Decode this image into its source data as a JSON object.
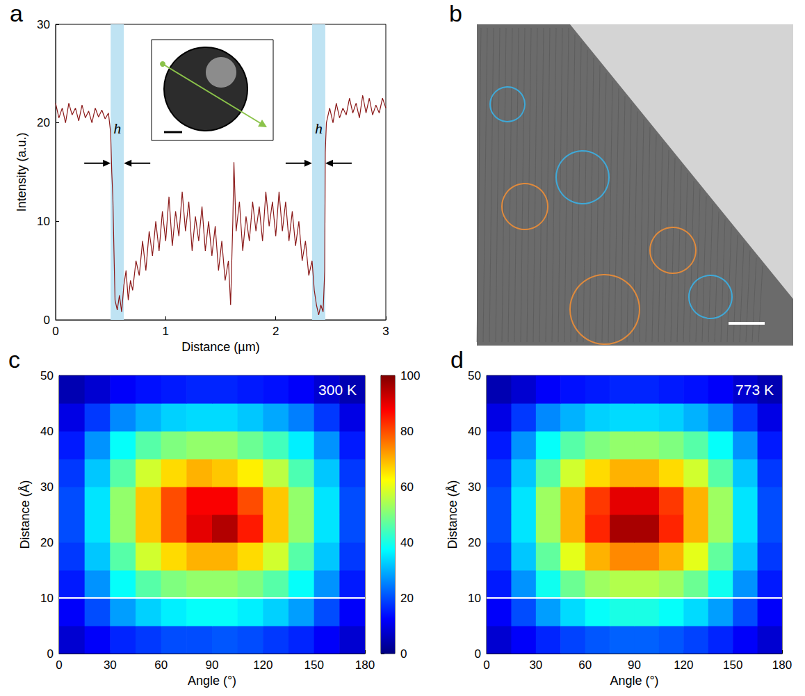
{
  "chart_data": [
    {
      "panel": "a",
      "type": "line",
      "color": "#8b1a1a",
      "xlabel": "Distance (µm)",
      "ylabel": "Intensity (a.u.)",
      "xlim": [
        0,
        3
      ],
      "xticks": [
        0,
        1,
        2,
        3
      ],
      "ylim": [
        0,
        30
      ],
      "yticks": [
        0,
        10,
        20,
        30
      ],
      "x": [
        0,
        0.03,
        0.06,
        0.09,
        0.12,
        0.15,
        0.18,
        0.21,
        0.24,
        0.27,
        0.3,
        0.33,
        0.36,
        0.39,
        0.42,
        0.45,
        0.48,
        0.5,
        0.51,
        0.52,
        0.53,
        0.54,
        0.56,
        0.58,
        0.6,
        0.62,
        0.64,
        0.66,
        0.68,
        0.7,
        0.73,
        0.76,
        0.79,
        0.82,
        0.85,
        0.88,
        0.91,
        0.94,
        0.97,
        1.0,
        1.03,
        1.06,
        1.09,
        1.12,
        1.15,
        1.18,
        1.21,
        1.24,
        1.27,
        1.3,
        1.33,
        1.36,
        1.39,
        1.42,
        1.45,
        1.48,
        1.51,
        1.54,
        1.57,
        1.59,
        1.61,
        1.62,
        1.64,
        1.67,
        1.7,
        1.73,
        1.76,
        1.79,
        1.82,
        1.85,
        1.88,
        1.91,
        1.94,
        1.97,
        2.0,
        2.03,
        2.06,
        2.09,
        2.12,
        2.15,
        2.18,
        2.21,
        2.24,
        2.27,
        2.3,
        2.33,
        2.35,
        2.37,
        2.39,
        2.41,
        2.43,
        2.445,
        2.45,
        2.46,
        2.49,
        2.52,
        2.55,
        2.58,
        2.61,
        2.64,
        2.67,
        2.7,
        2.73,
        2.76,
        2.79,
        2.82,
        2.85,
        2.88,
        2.91,
        2.94,
        2.97,
        3.0
      ],
      "values": [
        22,
        20.5,
        21.5,
        20,
        22,
        20.8,
        21.5,
        20.2,
        21.8,
        20.5,
        21.2,
        20,
        21.5,
        20.6,
        21.3,
        20.4,
        21,
        19,
        15,
        12.5,
        7,
        2,
        1,
        2.5,
        0.8,
        3.5,
        5,
        2,
        4,
        3,
        6,
        4.5,
        8,
        5,
        9,
        6.5,
        10,
        7,
        11,
        8,
        12.5,
        7.5,
        11,
        8.5,
        13,
        9,
        12,
        7,
        10.5,
        8,
        11.5,
        7,
        10,
        6.5,
        9.5,
        5,
        8,
        4,
        6,
        1.5,
        10,
        16,
        9,
        12,
        7,
        10.5,
        8,
        12,
        9,
        11.5,
        8,
        13,
        9.5,
        12,
        8.5,
        13,
        9,
        12,
        8,
        11,
        7.5,
        10,
        6,
        8,
        4.5,
        6,
        3,
        1.5,
        0.5,
        1.5,
        0.8,
        5,
        17,
        20,
        21.5,
        20,
        22,
        20.5,
        21.5,
        20.8,
        22.5,
        21,
        22,
        20.5,
        22.8,
        21,
        22.5,
        20.8,
        21.8,
        21,
        22.5,
        21.5
      ],
      "bands": [
        [
          0.5,
          0.62
        ],
        [
          2.33,
          2.45
        ]
      ],
      "band_label": "h"
    },
    {
      "panel": "b",
      "type": "image"
    },
    {
      "panel": "c",
      "type": "heatmap",
      "annotation": "300 K",
      "xlabel": "Angle (°)",
      "ylabel": "Distance (Å)",
      "xlim": [
        0,
        180
      ],
      "xticks": [
        0,
        30,
        60,
        90,
        120,
        150,
        180
      ],
      "ylim": [
        0,
        50
      ],
      "yticks": [
        0,
        10,
        20,
        30,
        40,
        50
      ],
      "x": [
        7.5,
        22.5,
        37.5,
        52.5,
        67.5,
        82.5,
        97.5,
        112.5,
        127.5,
        142.5,
        157.5,
        172.5
      ],
      "y": [
        2.5,
        7.5,
        12.5,
        17.5,
        22.5,
        27.5,
        32.5,
        37.5,
        42.5,
        47.5
      ],
      "cells": [
        [
          8,
          12,
          16,
          18,
          20,
          20,
          21,
          20,
          18,
          16,
          12,
          8
        ],
        [
          12,
          20,
          28,
          33,
          36,
          38,
          38,
          36,
          33,
          28,
          20,
          12
        ],
        [
          15,
          27,
          38,
          46,
          50,
          52,
          52,
          50,
          46,
          38,
          27,
          15
        ],
        [
          18,
          32,
          46,
          58,
          66,
          70,
          70,
          66,
          58,
          46,
          32,
          18
        ],
        [
          20,
          35,
          52,
          68,
          80,
          90,
          95,
          85,
          68,
          52,
          35,
          20
        ],
        [
          20,
          35,
          52,
          68,
          80,
          88,
          88,
          80,
          68,
          52,
          35,
          20
        ],
        [
          18,
          32,
          46,
          58,
          66,
          70,
          68,
          64,
          56,
          45,
          32,
          18
        ],
        [
          15,
          27,
          38,
          46,
          50,
          52,
          52,
          48,
          44,
          36,
          27,
          15
        ],
        [
          10,
          18,
          26,
          30,
          33,
          34,
          34,
          32,
          29,
          25,
          18,
          10
        ],
        [
          5,
          8,
          12,
          14,
          15,
          16,
          16,
          15,
          14,
          12,
          8,
          5
        ]
      ],
      "colorbar": {
        "range": [
          0,
          100
        ],
        "ticks": [
          0,
          20,
          40,
          60,
          80,
          100
        ]
      },
      "reference_line": 10
    },
    {
      "panel": "d",
      "type": "heatmap",
      "annotation": "773 K",
      "xlabel": "Angle (°)",
      "ylabel": "Distance (Å)",
      "xlim": [
        0,
        180
      ],
      "xticks": [
        0,
        30,
        60,
        90,
        120,
        150,
        180
      ],
      "ylim": [
        0,
        50
      ],
      "yticks": [
        0,
        10,
        20,
        30,
        40,
        50
      ],
      "x": [
        7.5,
        22.5,
        37.5,
        52.5,
        67.5,
        82.5,
        97.5,
        112.5,
        127.5,
        142.5,
        157.5,
        172.5
      ],
      "y": [
        2.5,
        7.5,
        12.5,
        17.5,
        22.5,
        27.5,
        32.5,
        37.5,
        42.5,
        47.5
      ],
      "cells": [
        [
          8,
          12,
          16,
          19,
          21,
          22,
          22,
          21,
          19,
          16,
          12,
          8
        ],
        [
          12,
          20,
          28,
          34,
          38,
          40,
          40,
          38,
          34,
          28,
          20,
          12
        ],
        [
          15,
          27,
          39,
          48,
          53,
          55,
          55,
          53,
          48,
          39,
          27,
          15
        ],
        [
          18,
          32,
          47,
          60,
          70,
          74,
          74,
          70,
          60,
          47,
          32,
          18
        ],
        [
          20,
          35,
          53,
          70,
          84,
          96,
          96,
          84,
          70,
          53,
          35,
          20
        ],
        [
          20,
          35,
          53,
          70,
          82,
          90,
          90,
          82,
          70,
          53,
          35,
          20
        ],
        [
          18,
          32,
          46,
          58,
          66,
          70,
          70,
          66,
          58,
          46,
          32,
          18
        ],
        [
          15,
          27,
          38,
          46,
          50,
          52,
          52,
          50,
          46,
          38,
          27,
          15
        ],
        [
          10,
          18,
          26,
          30,
          33,
          34,
          34,
          33,
          30,
          26,
          18,
          10
        ],
        [
          5,
          8,
          12,
          14,
          15,
          16,
          16,
          15,
          14,
          12,
          8,
          5
        ]
      ],
      "reference_line": 10
    }
  ]
}
